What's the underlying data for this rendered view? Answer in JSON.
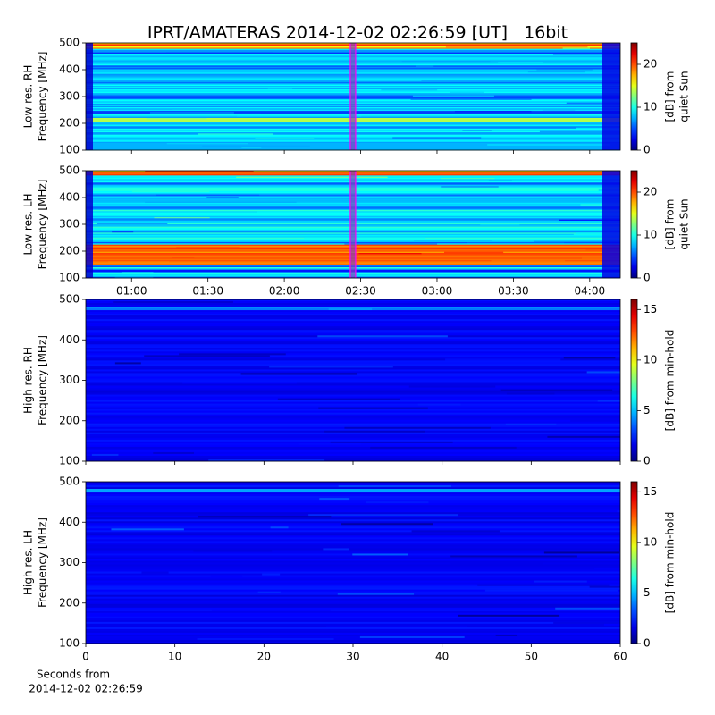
{
  "chart_data": {
    "type": "spectrogram",
    "title": "IPRT/AMATERAS 2014-12-02 02:26:59 [UT]   16bit",
    "x_label": [
      "Seconds from",
      "2014-12-02 02:26:59"
    ],
    "colormap": "jet",
    "cursor_color": "#ff00ff",
    "panels": [
      {
        "y_label": [
          "Low res. RH",
          "Frequency [MHz]"
        ],
        "xlim": [
          "00:42",
          "04:12"
        ],
        "xticks": [
          "01:00",
          "01:30",
          "02:00",
          "02:30",
          "03:00",
          "03:30",
          "04:00"
        ],
        "show_xtick_labels": false,
        "cursor_time": "02:26:59",
        "ylim": [
          100,
          500
        ],
        "yticks": [
          100,
          200,
          300,
          400,
          500
        ],
        "colorbar_label": [
          "[dB] from",
          "quiet Sun"
        ],
        "clim": [
          0,
          25
        ],
        "cticks": [
          0,
          10,
          20
        ]
      },
      {
        "y_label": [
          "Low res. LH",
          "Frequency [MHz]"
        ],
        "xlim": [
          "00:42",
          "04:12"
        ],
        "xticks": [
          "01:00",
          "01:30",
          "02:00",
          "02:30",
          "03:00",
          "03:30",
          "04:00"
        ],
        "show_xtick_labels": true,
        "cursor_time": "02:26:59",
        "ylim": [
          100,
          500
        ],
        "yticks": [
          100,
          200,
          300,
          400,
          500
        ],
        "colorbar_label": [
          "[dB] from",
          "quiet Sun"
        ],
        "clim": [
          0,
          25
        ],
        "cticks": [
          0,
          10,
          20
        ]
      },
      {
        "y_label": [
          "High res. RH",
          "Frequency [MHz]"
        ],
        "xlim": [
          0,
          60
        ],
        "xticks": [
          0,
          10,
          20,
          30,
          40,
          50,
          60
        ],
        "show_xtick_labels": false,
        "ylim": [
          100,
          500
        ],
        "yticks": [
          100,
          200,
          300,
          400,
          500
        ],
        "colorbar_label": [
          "[dB] from min-hold"
        ],
        "clim": [
          0,
          16
        ],
        "cticks": [
          0,
          5,
          10,
          15
        ]
      },
      {
        "y_label": [
          "High res. LH",
          "Frequency [MHz]"
        ],
        "xlim": [
          0,
          60
        ],
        "xticks": [
          0,
          10,
          20,
          30,
          40,
          50,
          60
        ],
        "show_xtick_labels": true,
        "ylim": [
          100,
          500
        ],
        "yticks": [
          100,
          200,
          300,
          400,
          500
        ],
        "colorbar_label": [
          "[dB] from min-hold"
        ],
        "clim": [
          0,
          16
        ],
        "cticks": [
          0,
          5,
          10,
          15
        ]
      }
    ]
  }
}
